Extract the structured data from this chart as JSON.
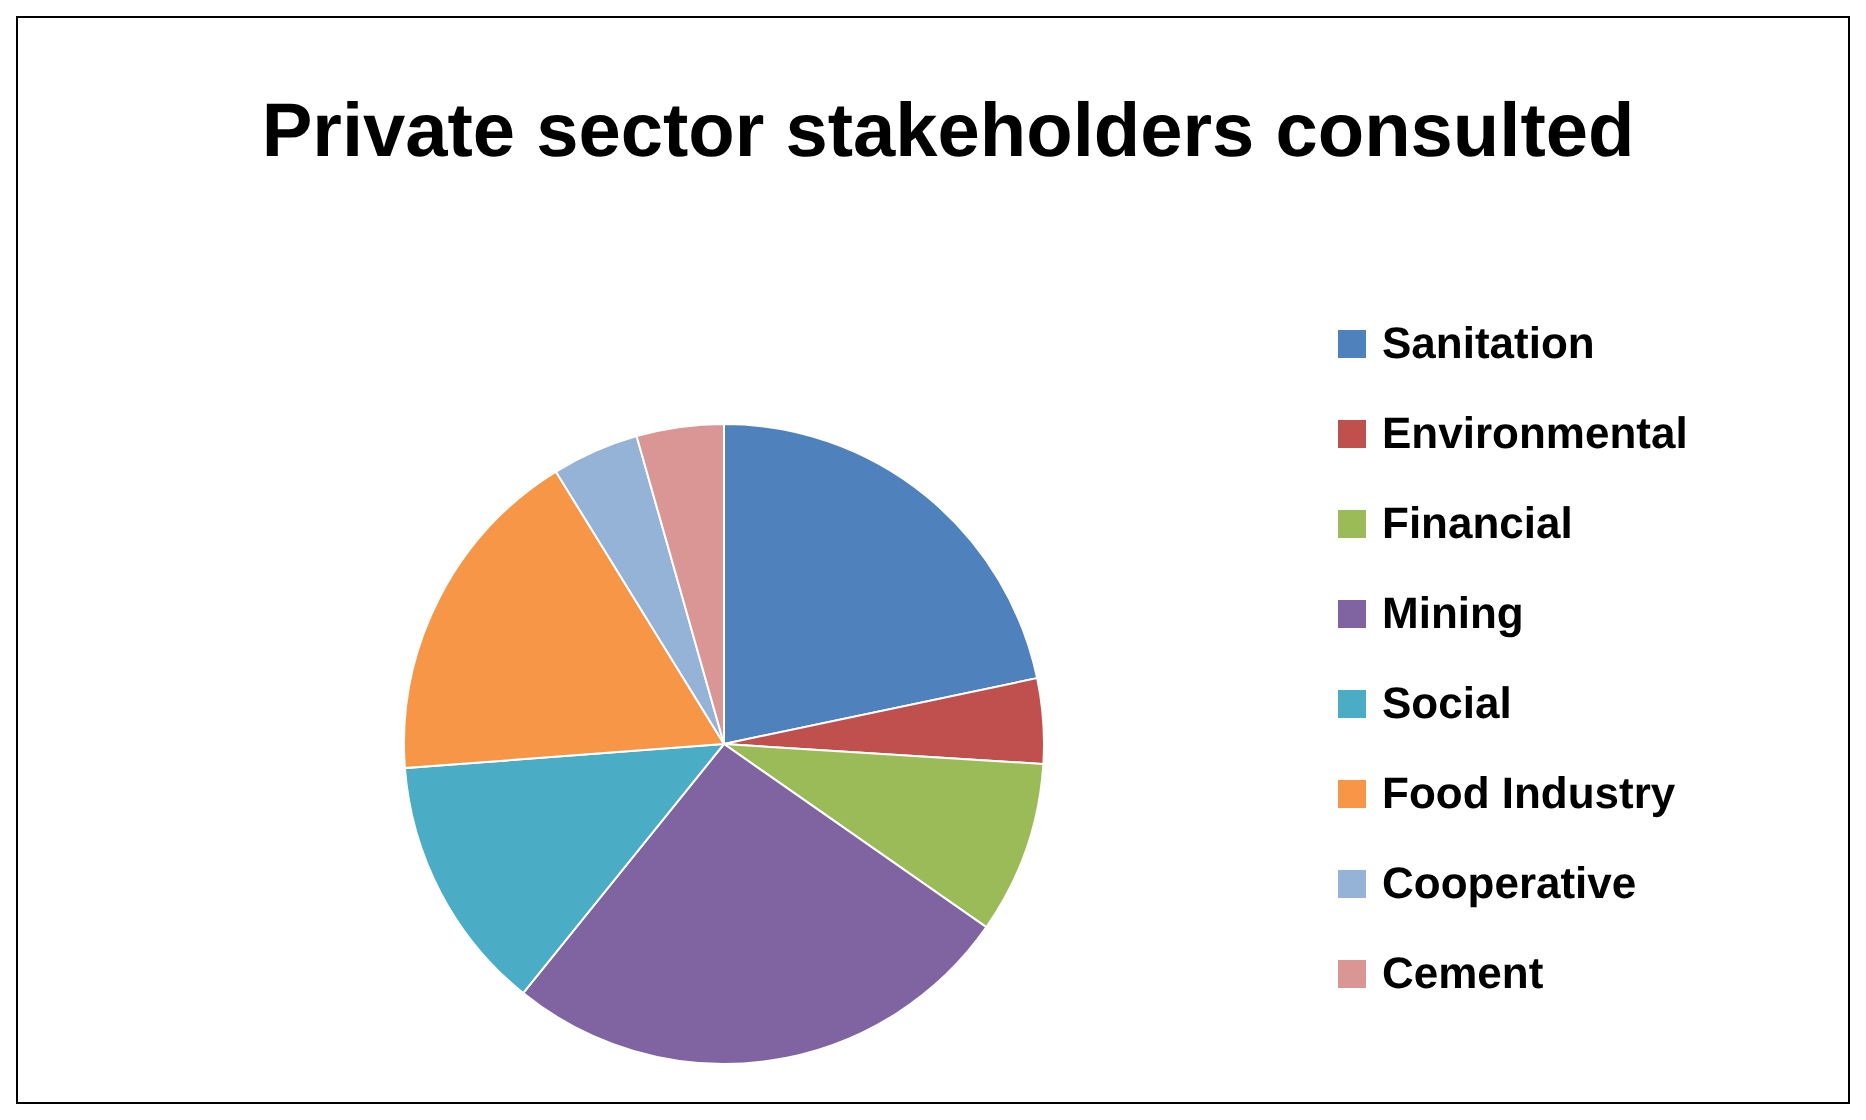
{
  "chart_data": {
    "type": "pie",
    "title": "Private sector stakeholders consulted",
    "categories": [
      "Sanitation",
      "Environmental",
      "Financial",
      "Mining",
      "Social",
      "Food Industry",
      "Cooperative",
      "Cement"
    ],
    "values": [
      21.7,
      4.3,
      8.7,
      26.1,
      13.0,
      17.4,
      4.4,
      4.4
    ],
    "colors": [
      "#4f81bd",
      "#c0504d",
      "#9bbb59",
      "#8064a2",
      "#4bacc6",
      "#f79646",
      "#95b3d7",
      "#d99694"
    ],
    "legend": "right"
  }
}
